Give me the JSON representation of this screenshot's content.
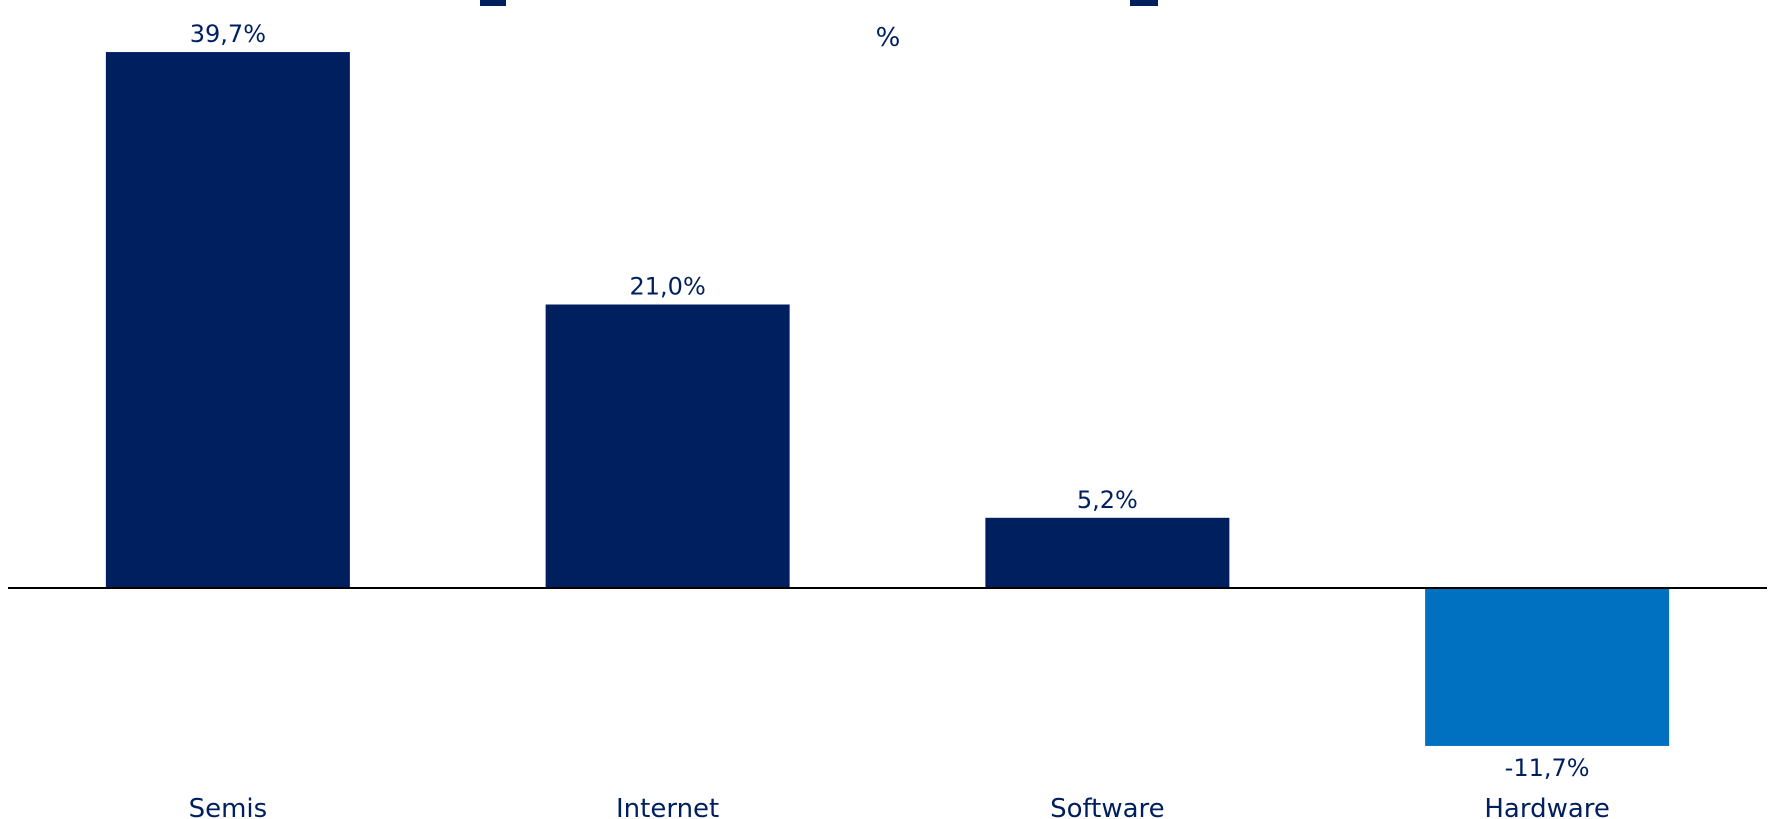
{
  "chart_data": {
    "type": "bar",
    "title": "",
    "subtitle": "%",
    "categories": [
      "Semis",
      "Internet",
      "Software",
      "Hardware"
    ],
    "values": [
      39.7,
      21.0,
      5.2,
      -11.7
    ],
    "data_labels": [
      "39,7%",
      "21,0%",
      "5,2%",
      "-11,7%"
    ],
    "ylim": [
      -11.7,
      39.7
    ],
    "grid": false,
    "legend": "none",
    "colors": {
      "positive": "#001f5f",
      "negative": "#0070c0",
      "text": "#001f5f",
      "axis": "#000000"
    }
  }
}
